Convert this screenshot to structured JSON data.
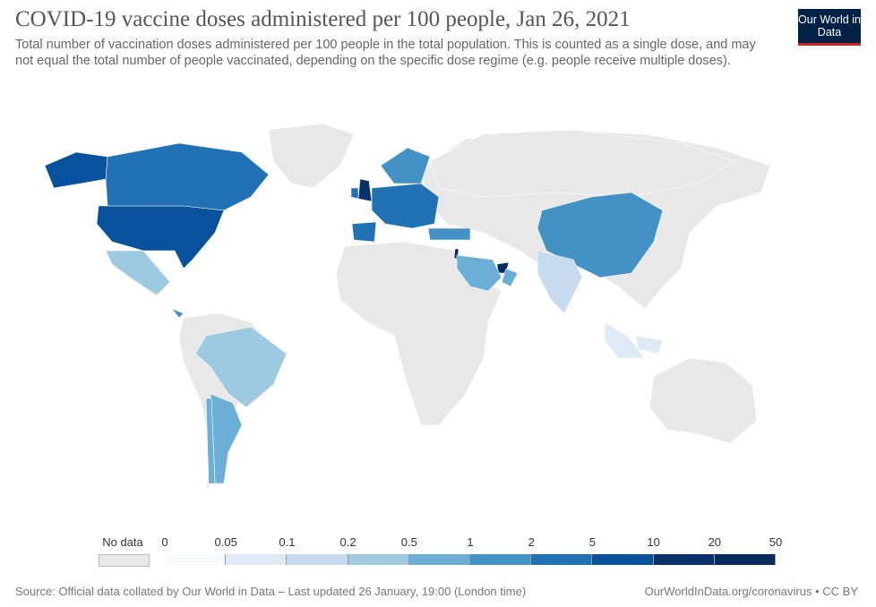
{
  "header": {
    "title": "COVID-19 vaccine doses administered per 100 people, Jan 26, 2021",
    "subtitle": "Total number of vaccination doses administered per 100 people in the total population. This is counted as a single dose, and may not equal the total number of people vaccinated, depending on the specific dose regime (e.g. people receive multiple doses).",
    "logo": "Our World in Data"
  },
  "legend": {
    "no_data_label": "No data",
    "no_data_color": "#e8e8e8",
    "ticks": [
      "0",
      "0.05",
      "0.1",
      "0.2",
      "0.5",
      "1",
      "2",
      "5",
      "10",
      "20",
      "50"
    ],
    "colors": [
      "#f7fbff",
      "#deebf7",
      "#c6dbef",
      "#9ecae1",
      "#6baed6",
      "#4292c6",
      "#2171b5",
      "#08519c",
      "#08306b",
      "#082a5c"
    ]
  },
  "regions": [
    {
      "name": "United States",
      "bin": 7
    },
    {
      "name": "Canada",
      "bin": 6
    },
    {
      "name": "Alaska",
      "bin": 7
    },
    {
      "name": "Mexico",
      "bin": 3
    },
    {
      "name": "Costa Rica",
      "bin": 5
    },
    {
      "name": "Brazil",
      "bin": 3
    },
    {
      "name": "Argentina",
      "bin": 4
    },
    {
      "name": "Chile",
      "bin": 4
    },
    {
      "name": "United Kingdom",
      "bin": 8
    },
    {
      "name": "Ireland",
      "bin": 6
    },
    {
      "name": "Europe",
      "bin": 6
    },
    {
      "name": "Spain",
      "bin": 6
    },
    {
      "name": "Scandinavia",
      "bin": 5
    },
    {
      "name": "Turkey",
      "bin": 5
    },
    {
      "name": "Israel",
      "bin": 9
    },
    {
      "name": "United Arab Emirates",
      "bin": 9
    },
    {
      "name": "Saudi Arabia",
      "bin": 4
    },
    {
      "name": "Oman",
      "bin": 4
    },
    {
      "name": "China",
      "bin": 5
    },
    {
      "name": "India",
      "bin": 2
    },
    {
      "name": "Indonesia",
      "bin": 1
    },
    {
      "name": "Russia",
      "bin": -1
    }
  ],
  "footer": {
    "source": "Source: Official data collated by Our World in Data – Last updated 26 January, 19:00 (London time)",
    "url": "OurWorldInData.org/coronavirus • CC BY"
  }
}
